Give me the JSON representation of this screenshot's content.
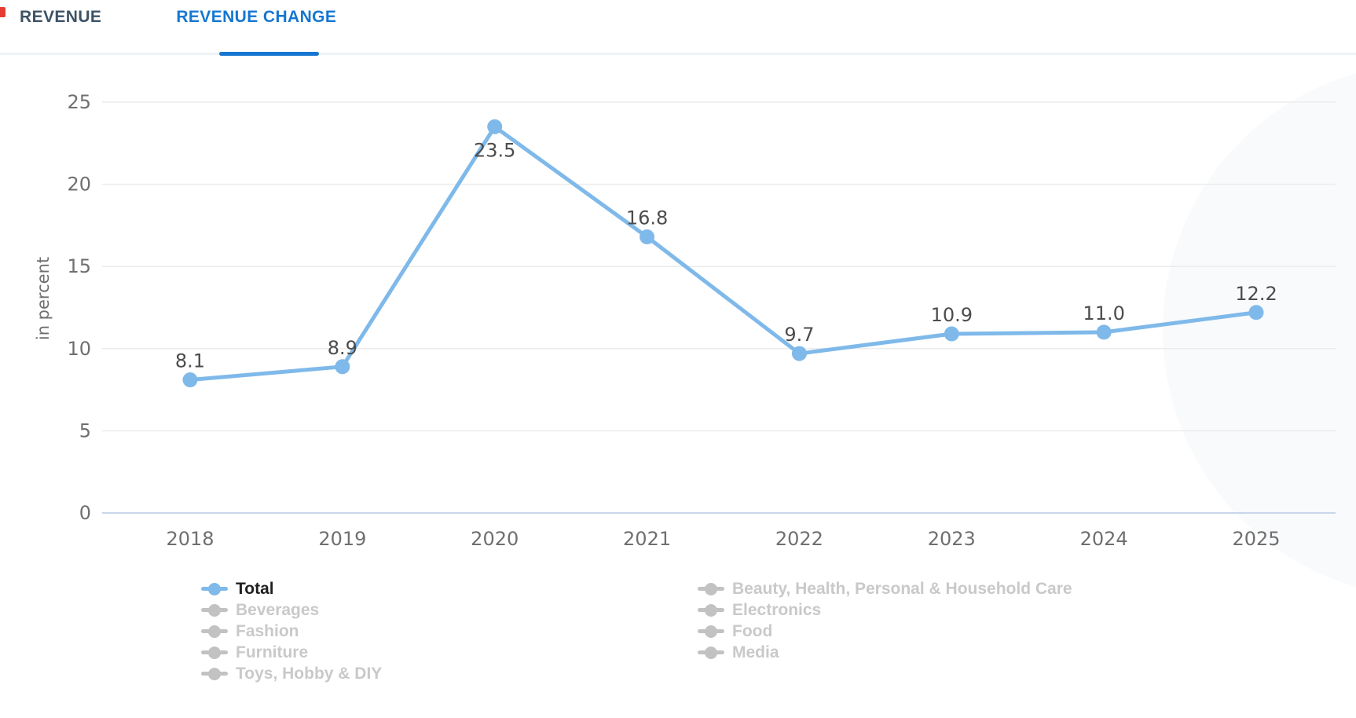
{
  "tabs": {
    "revenue": {
      "label": "REVENUE"
    },
    "revenue_change": {
      "label": "REVENUE CHANGE"
    }
  },
  "chart_data": {
    "type": "line",
    "title": "",
    "x": [
      "2018",
      "2019",
      "2020",
      "2021",
      "2022",
      "2023",
      "2024",
      "2025"
    ],
    "series": [
      {
        "name": "Total",
        "values": [
          8.1,
          8.9,
          23.5,
          16.8,
          9.7,
          10.9,
          11.0,
          12.2
        ],
        "color": "#7fb9ea",
        "enabled": true
      }
    ],
    "value_labels": [
      "8.1",
      "8.9",
      "23.5",
      "16.8",
      "9.7",
      "10.9",
      "11.0",
      "12.2"
    ],
    "xlabel": "",
    "ylabel": "in percent",
    "ylim": [
      0,
      25
    ],
    "yticks": [
      0,
      5,
      10,
      15,
      20,
      25
    ],
    "grid": true,
    "legend_position": "bottom"
  },
  "legend": {
    "columns": [
      {
        "items": [
          {
            "label": "Total",
            "enabled": true
          },
          {
            "label": "Beverages",
            "enabled": false
          },
          {
            "label": "Fashion",
            "enabled": false
          },
          {
            "label": "Furniture",
            "enabled": false
          },
          {
            "label": "Toys, Hobby & DIY",
            "enabled": false
          }
        ]
      },
      {
        "items": [
          {
            "label": "Beauty, Health, Personal & Household Care",
            "enabled": false
          },
          {
            "label": "Electronics",
            "enabled": false
          },
          {
            "label": "Food",
            "enabled": false
          },
          {
            "label": "Media",
            "enabled": false
          }
        ]
      }
    ]
  },
  "colors": {
    "accent": "#1577d1",
    "inactive_tab": "#3e5266",
    "line": "#7fb9ea",
    "disabled_legend": "#c9c9c9",
    "axis_text": "#6f6f6f",
    "value_label": "#4c4c4c",
    "gridline": "#ececec",
    "baseline": "#c9d6ea"
  }
}
